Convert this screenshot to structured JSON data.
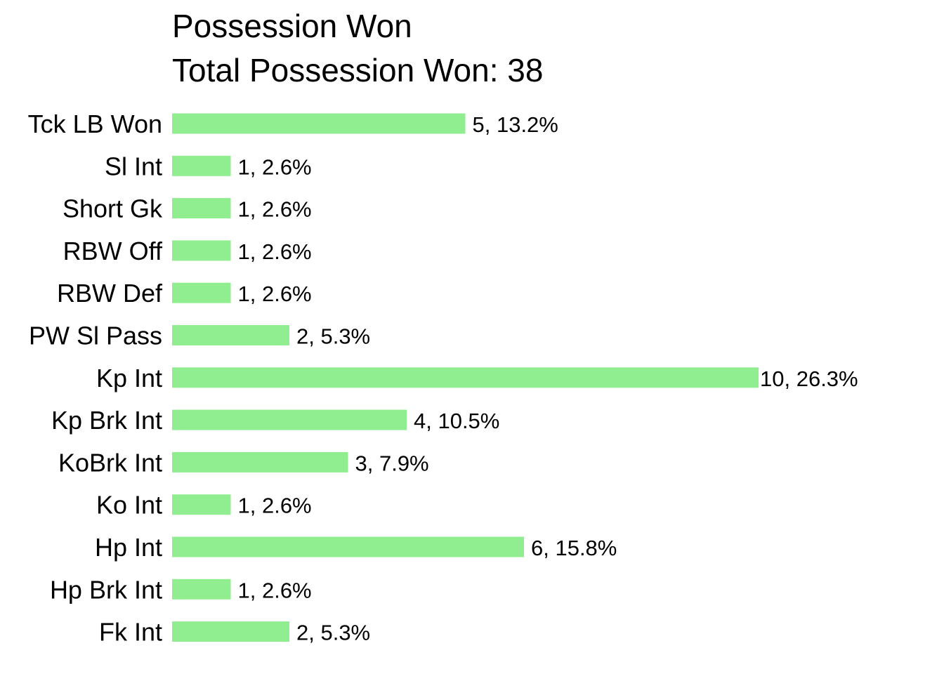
{
  "chart_data": {
    "type": "bar",
    "orientation": "horizontal",
    "title": "Possession Won",
    "subtitle": "Total Possession Won: 38",
    "xlabel": "",
    "ylabel": "",
    "grid": false,
    "legend": "none",
    "bar_color": "#90EE90",
    "categories": [
      "Tck LB Won",
      "Sl Int",
      "Short Gk",
      "RBW Off",
      "RBW Def",
      "PW Sl Pass",
      "Kp Int",
      "Kp Brk Int",
      "KoBrk Int",
      "Ko Int",
      "Hp Int",
      "Hp Brk Int",
      "Fk Int"
    ],
    "values": [
      5,
      1,
      1,
      1,
      1,
      2,
      10,
      4,
      3,
      1,
      6,
      1,
      2
    ],
    "labels": [
      "5, 13.2%",
      "1, 2.6%",
      "1, 2.6%",
      "1, 2.6%",
      "1, 2.6%",
      "2, 5.3%",
      "10, 26.3%",
      "4, 10.5%",
      "3, 7.9%",
      "1, 2.6%",
      "6, 15.8%",
      "1, 2.6%",
      "2, 5.3%"
    ],
    "xlim": [
      0,
      10
    ]
  }
}
